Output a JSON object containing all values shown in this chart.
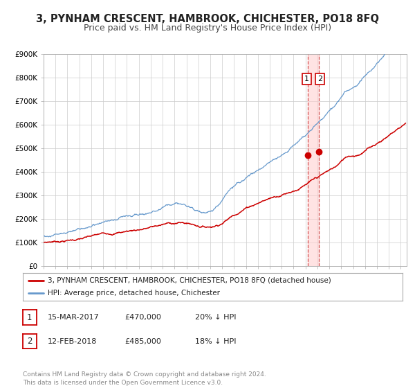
{
  "title": "3, PYNHAM CRESCENT, HAMBROOK, CHICHESTER, PO18 8FQ",
  "subtitle": "Price paid vs. HM Land Registry's House Price Index (HPI)",
  "ylim": [
    0,
    900000
  ],
  "xlim_start": 1995.0,
  "xlim_end": 2025.5,
  "yticks": [
    0,
    100000,
    200000,
    300000,
    400000,
    500000,
    600000,
    700000,
    800000,
    900000
  ],
  "ytick_labels": [
    "£0",
    "£100K",
    "£200K",
    "£300K",
    "£400K",
    "£500K",
    "£600K",
    "£700K",
    "£800K",
    "£900K"
  ],
  "xticks": [
    1995,
    1996,
    1997,
    1998,
    1999,
    2000,
    2001,
    2002,
    2003,
    2004,
    2005,
    2006,
    2007,
    2008,
    2009,
    2010,
    2011,
    2012,
    2013,
    2014,
    2015,
    2016,
    2017,
    2018,
    2019,
    2020,
    2021,
    2022,
    2023,
    2024,
    2025
  ],
  "sale1_x": 2017.2,
  "sale1_y": 470000,
  "sale2_x": 2018.12,
  "sale2_y": 485000,
  "vline1_x": 2017.2,
  "vline2_x": 2018.12,
  "red_line_color": "#cc0000",
  "blue_line_color": "#6699cc",
  "marker_color": "#cc0000",
  "vline_color": "#cc4444",
  "span_color": "#ffcccc",
  "legend1_label": "3, PYNHAM CRESCENT, HAMBROOK, CHICHESTER, PO18 8FQ (detached house)",
  "legend2_label": "HPI: Average price, detached house, Chichester",
  "table_row1": [
    "1",
    "15-MAR-2017",
    "£470,000",
    "20% ↓ HPI"
  ],
  "table_row2": [
    "2",
    "12-FEB-2018",
    "£485,000",
    "18% ↓ HPI"
  ],
  "footnote": "Contains HM Land Registry data © Crown copyright and database right 2024.\nThis data is licensed under the Open Government Licence v3.0.",
  "background_color": "#ffffff",
  "grid_color": "#cccccc",
  "title_fontsize": 10.5,
  "subtitle_fontsize": 9,
  "tick_fontsize": 7.5,
  "legend_fontsize": 7.5,
  "table_fontsize": 8
}
